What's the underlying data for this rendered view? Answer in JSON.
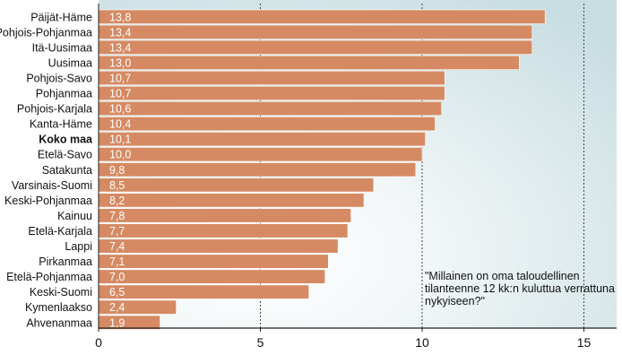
{
  "chart_data": {
    "type": "bar",
    "orientation": "horizontal",
    "categories": [
      "Päijät-Häme",
      "Pohjois-Pohjanmaa",
      "Itä-Uusimaa",
      "Uusimaa",
      "Pohjois-Savo",
      "Pohjanmaa",
      "Pohjois-Karjala",
      "Kanta-Häme",
      "Koko maa",
      "Etelä-Savo",
      "Satakunta",
      "Varsinais-Suomi",
      "Keski-Pohjanmaa",
      "Kainuu",
      "Etelä-Karjala",
      "Lappi",
      "Pirkanmaa",
      "Etelä-Pohjanmaa",
      "Keski-Suomi",
      "Kymenlaakso",
      "Ahvenanmaa"
    ],
    "values": [
      13.8,
      13.4,
      13.4,
      13.0,
      10.7,
      10.7,
      10.6,
      10.4,
      10.1,
      10.0,
      9.8,
      8.5,
      8.2,
      7.8,
      7.7,
      7.4,
      7.1,
      7.0,
      6.5,
      2.4,
      1.9
    ],
    "value_labels": [
      "13,8",
      "13,4",
      "13,4",
      "13,0",
      "10,7",
      "10,7",
      "10,6",
      "10,4",
      "10,1",
      "10,0",
      "9,8",
      "8,5",
      "8,2",
      "7,8",
      "7,7",
      "7,4",
      "7,1",
      "7,0",
      "6,5",
      "2,4",
      "1,9"
    ],
    "highlighted_category": "Koko maa",
    "xlim": [
      0,
      16
    ],
    "xticks": [
      0,
      5,
      10,
      15
    ],
    "xtick_labels": [
      "0",
      "5",
      "10",
      "15"
    ],
    "grid": "vertical dashed lines at 5, 10 and 15",
    "annotation_lines": [
      "\"Millainen on oma taloudellinen",
      "tilanteenne 12 kk:n kuluttua verrattuna",
      "nykyiseen?\""
    ],
    "bar_color": "#d58a63",
    "background_gradient": [
      "#ffffff",
      "#c7dde1"
    ]
  }
}
